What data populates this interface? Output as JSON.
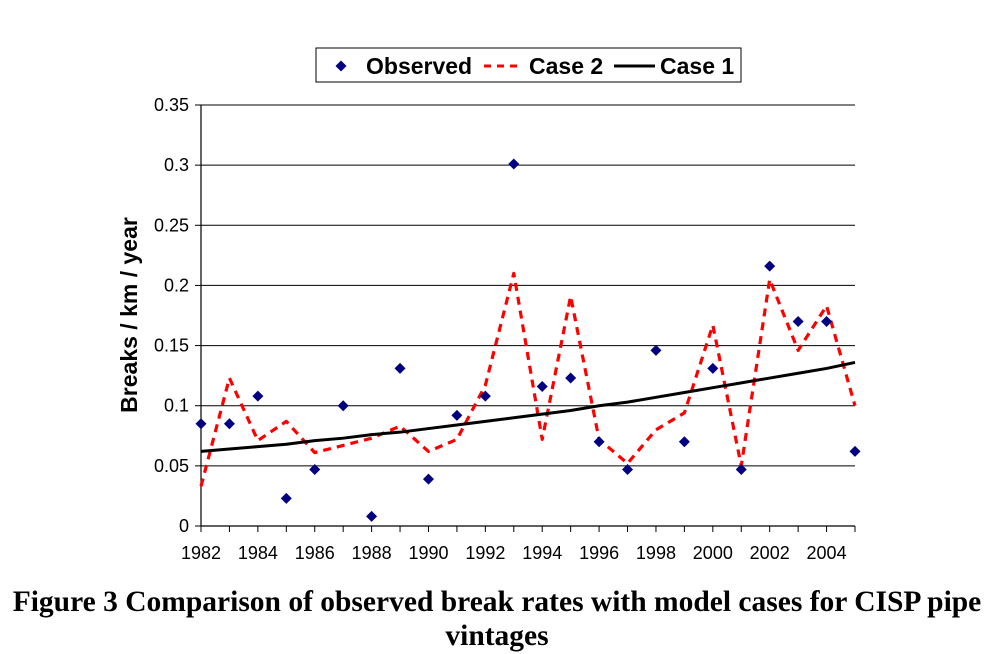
{
  "figure": {
    "caption": "Figure 3 Comparison of observed break rates with model cases for CISP pipe vintages"
  },
  "chart_data": {
    "type": "line",
    "title": "",
    "xlabel": "",
    "ylabel": "Breaks / km / year",
    "x": [
      1982,
      1983,
      1984,
      1985,
      1986,
      1987,
      1988,
      1989,
      1990,
      1991,
      1992,
      1993,
      1994,
      1995,
      1996,
      1997,
      1998,
      1999,
      2000,
      2001,
      2002,
      2003,
      2004,
      2005
    ],
    "xlim": [
      1982,
      2005
    ],
    "ylim": [
      0,
      0.35
    ],
    "x_ticks": [
      "1982",
      "1984",
      "1986",
      "1988",
      "1990",
      "1992",
      "1994",
      "1996",
      "1998",
      "2000",
      "2002",
      "2004"
    ],
    "y_ticks": [
      "0",
      "0.05",
      "0.1",
      "0.15",
      "0.2",
      "0.25",
      "0.3",
      "0.35"
    ],
    "grid": true,
    "legend_position": "top-center",
    "series": [
      {
        "name": "Observed",
        "color": "#000080",
        "marker": "diamond",
        "line_style": "none",
        "values": [
          0.085,
          0.085,
          0.108,
          0.023,
          0.047,
          0.1,
          0.008,
          0.131,
          0.039,
          0.092,
          0.108,
          0.301,
          0.116,
          0.123,
          0.07,
          0.047,
          0.146,
          0.07,
          0.131,
          0.047,
          0.216,
          0.17,
          0.17,
          0.062
        ]
      },
      {
        "name": "Case 2",
        "color": "#ff0000",
        "marker": "none",
        "line_style": "dashed",
        "values": [
          0.033,
          0.123,
          0.071,
          0.087,
          0.061,
          0.067,
          0.073,
          0.083,
          0.062,
          0.072,
          0.117,
          0.21,
          0.072,
          0.191,
          0.072,
          0.052,
          0.08,
          0.094,
          0.167,
          0.05,
          0.205,
          0.146,
          0.183,
          0.1
        ]
      },
      {
        "name": "Case 1",
        "color": "#000000",
        "marker": "none",
        "line_style": "solid",
        "values": [
          0.062,
          0.064,
          0.066,
          0.068,
          0.071,
          0.073,
          0.076,
          0.078,
          0.081,
          0.084,
          0.087,
          0.09,
          0.093,
          0.096,
          0.1,
          0.103,
          0.107,
          0.111,
          0.115,
          0.119,
          0.123,
          0.127,
          0.131,
          0.136
        ]
      }
    ]
  }
}
